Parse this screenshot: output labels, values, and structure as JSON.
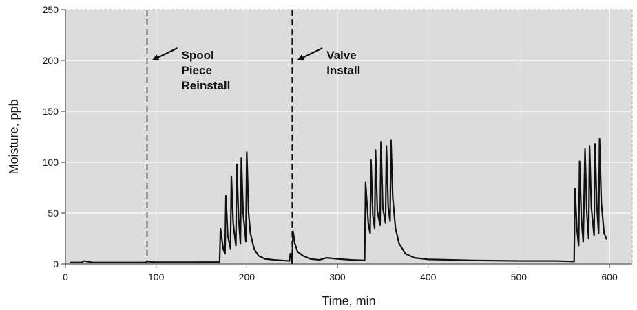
{
  "chart_data": {
    "type": "line",
    "title": "",
    "xlabel": "Time, min",
    "ylabel": "Moisture, ppb",
    "xlim": [
      0,
      625
    ],
    "ylim": [
      0,
      250
    ],
    "xticks": [
      0,
      100,
      200,
      300,
      400,
      500,
      600
    ],
    "yticks": [
      0,
      50,
      100,
      150,
      200,
      250
    ],
    "grid": true,
    "legend": "none",
    "colors": {
      "plot_background": "#dcdcdc",
      "grid": "#ffffff",
      "line": "#111111"
    },
    "events": [
      {
        "x": 90,
        "label_lines": [
          "Spool",
          "Piece",
          "Reinstall"
        ]
      },
      {
        "x": 250,
        "label_lines": [
          "Valve",
          "Install"
        ]
      }
    ],
    "series": [
      {
        "values_xy": [
          [
            5,
            1.5
          ],
          [
            18,
            1.5
          ],
          [
            20,
            3
          ],
          [
            24,
            2.5
          ],
          [
            30,
            1.5
          ],
          [
            60,
            1.5
          ],
          [
            88,
            1.5
          ],
          [
            90,
            2.5
          ],
          [
            95,
            2
          ],
          [
            100,
            1.8
          ],
          [
            140,
            1.8
          ],
          [
            170,
            2
          ],
          [
            171,
            35
          ],
          [
            174,
            15
          ],
          [
            176,
            10
          ],
          [
            177,
            67
          ],
          [
            179,
            28
          ],
          [
            182,
            15
          ],
          [
            183,
            86
          ],
          [
            185,
            40
          ],
          [
            188,
            18
          ],
          [
            189,
            98
          ],
          [
            191,
            45
          ],
          [
            193,
            20
          ],
          [
            194,
            104
          ],
          [
            196,
            50
          ],
          [
            199,
            22
          ],
          [
            200,
            110
          ],
          [
            202,
            50
          ],
          [
            204,
            30
          ],
          [
            208,
            15
          ],
          [
            213,
            8
          ],
          [
            220,
            5
          ],
          [
            230,
            4
          ],
          [
            247,
            3
          ],
          [
            248,
            10
          ],
          [
            249,
            10
          ],
          [
            250,
            1
          ],
          [
            251,
            32
          ],
          [
            253,
            20
          ],
          [
            256,
            12
          ],
          [
            262,
            8
          ],
          [
            270,
            5
          ],
          [
            280,
            4
          ],
          [
            284,
            5
          ],
          [
            288,
            6
          ],
          [
            300,
            5
          ],
          [
            315,
            4
          ],
          [
            330,
            3.5
          ],
          [
            331,
            80
          ],
          [
            334,
            40
          ],
          [
            336,
            30
          ],
          [
            337,
            102
          ],
          [
            339,
            48
          ],
          [
            341,
            35
          ],
          [
            342,
            112
          ],
          [
            344,
            52
          ],
          [
            347,
            38
          ],
          [
            348,
            120
          ],
          [
            350,
            55
          ],
          [
            353,
            40
          ],
          [
            354,
            116
          ],
          [
            356,
            56
          ],
          [
            358,
            42
          ],
          [
            359,
            122
          ],
          [
            361,
            65
          ],
          [
            364,
            35
          ],
          [
            368,
            20
          ],
          [
            375,
            10
          ],
          [
            385,
            6
          ],
          [
            400,
            4.5
          ],
          [
            450,
            3.5
          ],
          [
            500,
            3
          ],
          [
            540,
            3
          ],
          [
            561,
            2.5
          ],
          [
            562,
            74
          ],
          [
            564,
            35
          ],
          [
            566,
            18
          ],
          [
            567,
            101
          ],
          [
            569,
            45
          ],
          [
            571,
            22
          ],
          [
            573,
            113
          ],
          [
            575,
            50
          ],
          [
            577,
            25
          ],
          [
            578,
            116
          ],
          [
            580,
            55
          ],
          [
            583,
            28
          ],
          [
            584,
            118
          ],
          [
            586,
            58
          ],
          [
            588,
            30
          ],
          [
            589,
            123
          ],
          [
            591,
            60
          ],
          [
            594,
            30
          ],
          [
            597,
            24
          ]
        ]
      }
    ]
  }
}
